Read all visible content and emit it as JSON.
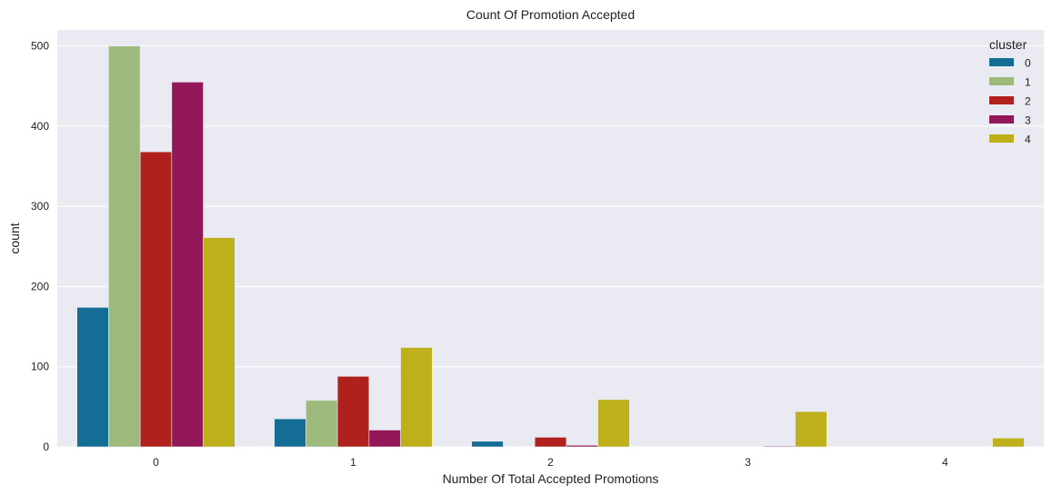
{
  "chart_data": {
    "type": "bar",
    "title": "Count Of Promotion Accepted",
    "xlabel": "Number Of Total Accepted Promotions",
    "ylabel": "count",
    "categories": [
      "0",
      "1",
      "2",
      "3",
      "4"
    ],
    "ylim": [
      0,
      520
    ],
    "yticks": [
      0,
      100,
      200,
      300,
      400,
      500
    ],
    "grid": true,
    "legend": {
      "title": "cluster",
      "placement": "top-right"
    },
    "series": [
      {
        "name": "0",
        "color": "#146d94",
        "values": [
          174,
          35,
          7,
          0,
          0
        ]
      },
      {
        "name": "1",
        "color": "#9dba7c",
        "values": [
          500,
          58,
          0,
          0,
          0
        ]
      },
      {
        "name": "2",
        "color": "#b0211d",
        "values": [
          368,
          88,
          12,
          0,
          0
        ]
      },
      {
        "name": "3",
        "color": "#911759",
        "values": [
          455,
          21,
          2,
          1,
          0
        ]
      },
      {
        "name": "4",
        "color": "#bdb01a",
        "values": [
          261,
          124,
          59,
          44,
          11
        ]
      }
    ],
    "colors": {
      "plot_background": "#eaeaf2",
      "grid": "#ffffff"
    }
  }
}
